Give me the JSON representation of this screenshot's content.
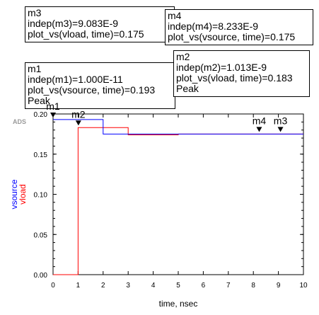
{
  "chart_data": {
    "type": "line",
    "watermark": "ADS",
    "xlabel": "time, nsec",
    "ylabel": [
      "vsource",
      "vload"
    ],
    "xlim": [
      0,
      10
    ],
    "ylim": [
      0,
      0.2
    ],
    "xticks": [
      "0",
      "1",
      "2",
      "3",
      "4",
      "5",
      "6",
      "7",
      "8",
      "9",
      "10"
    ],
    "yticks": [
      "0.00",
      "0.05",
      "0.10",
      "0.15",
      "0.20"
    ],
    "series": [
      {
        "name": "vsource",
        "color": "#0000ff",
        "x": [
          0,
          2,
          2,
          4,
          4,
          10
        ],
        "y": [
          0.193,
          0.193,
          0.175,
          0.175,
          0.175,
          0.175
        ]
      },
      {
        "name": "vload",
        "color": "#ff0000",
        "x": [
          0,
          1,
          1,
          3,
          3,
          5,
          5,
          10
        ],
        "y": [
          0,
          0,
          0.183,
          0.183,
          0.174,
          0.174,
          0.175,
          0.175
        ]
      }
    ],
    "markers": [
      {
        "label": "m1",
        "x": 1e-11,
        "y": 0.193
      },
      {
        "label": "m2",
        "x": 1.013,
        "y": 0.183
      },
      {
        "label": "m4",
        "x": 8.233,
        "y": 0.175
      },
      {
        "label": "m3",
        "x": 9.083,
        "y": 0.175
      }
    ]
  },
  "marker_boxes": {
    "m3": {
      "name": "m3",
      "indep": "indep(m3)=9.083E-9",
      "plot": "plot_vs(vload, time)=0.175",
      "extra": ""
    },
    "m4": {
      "name": "m4",
      "indep": "indep(m4)=8.233E-9",
      "plot": "plot_vs(vsource, time)=0.175",
      "extra": ""
    },
    "m1": {
      "name": "m1",
      "indep": "indep(m1)=1.000E-11",
      "plot": "plot_vs(vsource, time)=0.193",
      "extra": "Peak"
    },
    "m2": {
      "name": "m2",
      "indep": "indep(m2)=1.013E-9",
      "plot": "plot_vs(vload, time)=0.183",
      "extra": "Peak"
    }
  }
}
